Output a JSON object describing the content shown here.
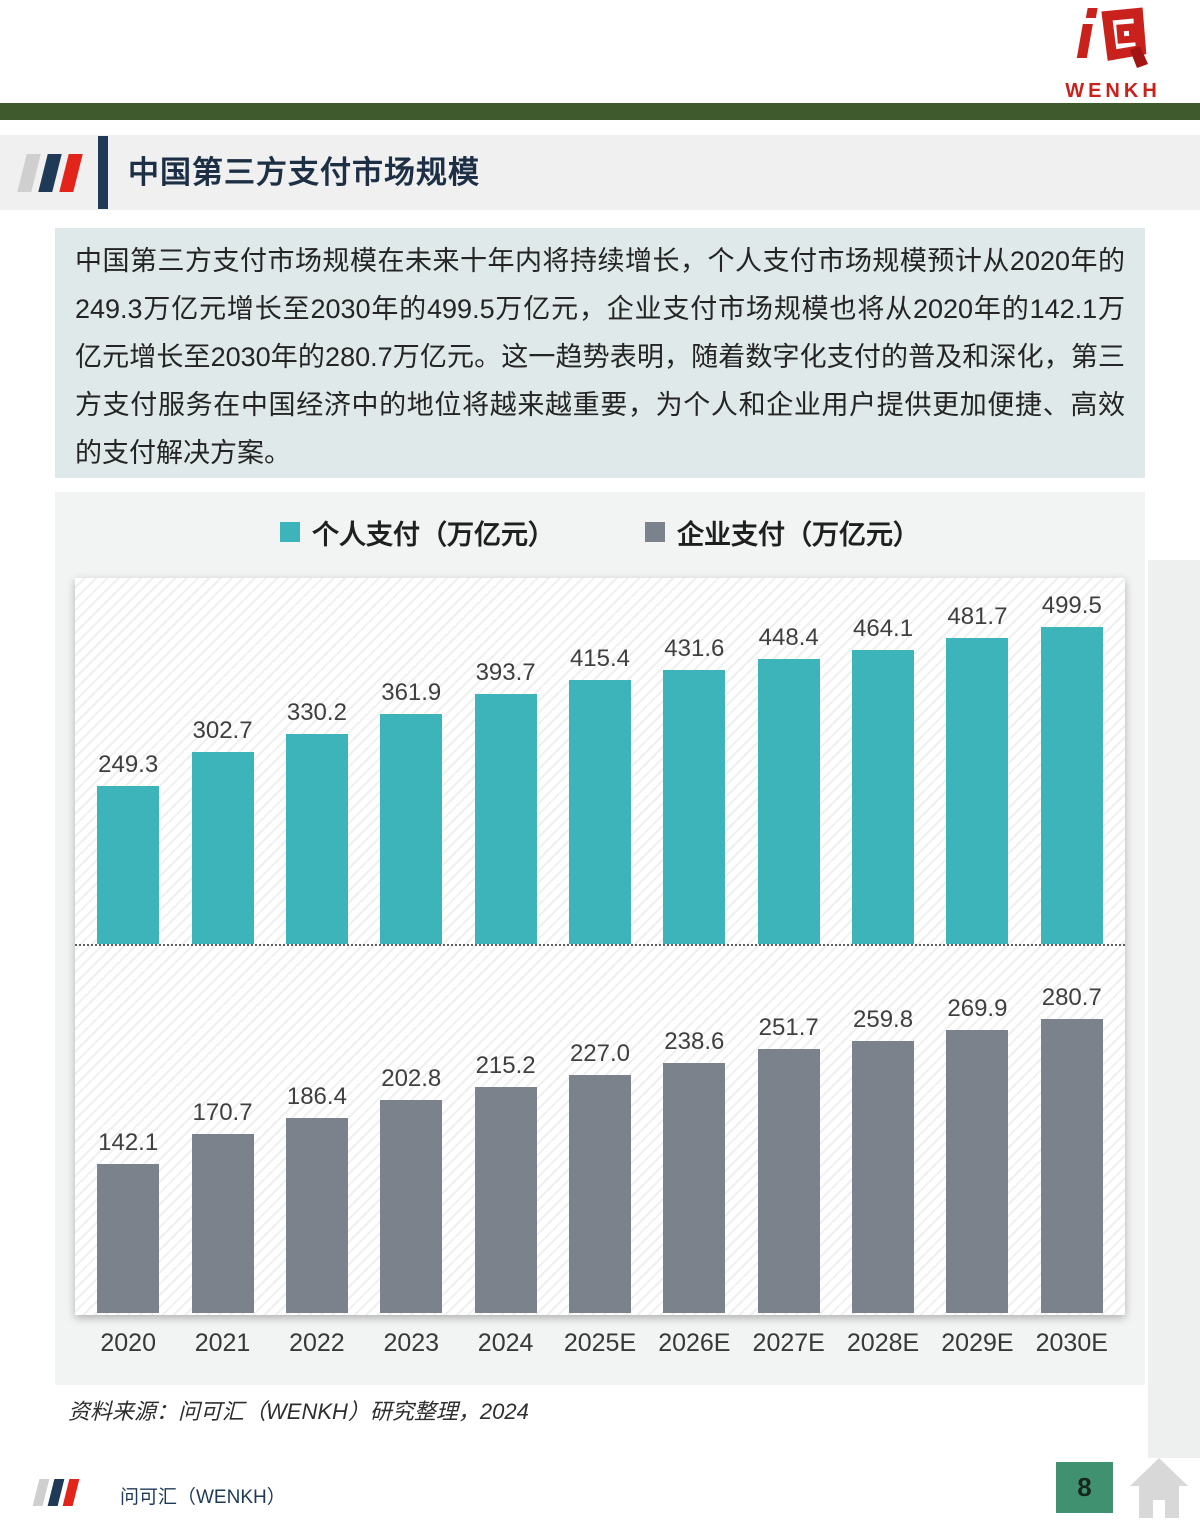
{
  "header": {
    "logo_text": "WENKH"
  },
  "title": {
    "text": "中国第三方支付市场规模"
  },
  "intro": {
    "text": "中国第三方支付市场规模在未来十年内将持续增长，个人支付市场规模预计从2020年的249.3万亿元增长至2030年的499.5万亿元，企业支付市场规模也将从2020年的142.1万亿元增长至2030年的280.7万亿元。这一趋势表明，随着数字化支付的普及和深化，第三方支付服务在中国经济中的地位将越来越重要，为个人和企业用户提供更加便捷、高效的支付解决方案。"
  },
  "chart_data": {
    "type": "bar",
    "title": "",
    "categories": [
      "2020",
      "2021",
      "2022",
      "2023",
      "2024",
      "2025E",
      "2026E",
      "2027E",
      "2028E",
      "2029E",
      "2030E"
    ],
    "series": [
      {
        "name": "个人支付（万亿元）",
        "color": "#3db4ba",
        "ylim": [
          0,
          580
        ],
        "values": [
          249.3,
          302.7,
          330.2,
          361.9,
          393.7,
          415.4,
          431.6,
          448.4,
          464.1,
          481.7,
          499.5
        ]
      },
      {
        "name": "企业支付（万亿元）",
        "color": "#7b828b",
        "ylim": [
          0,
          350
        ],
        "values": [
          142.1,
          170.7,
          186.4,
          202.8,
          215.2,
          227.0,
          238.6,
          251.7,
          259.8,
          269.9,
          280.7
        ]
      }
    ],
    "legend_position": "top",
    "grid": false,
    "value_labels": true,
    "label_format": "one_decimal"
  },
  "source": {
    "text": "资料来源：问可汇（WENKH）研究整理，2024"
  },
  "footer": {
    "brand": "问可汇（WENKH）",
    "page_number": "8"
  },
  "colors": {
    "accent_green_rule": "#3f5b2d",
    "brand_navy": "#1e3a56",
    "brand_red": "#e3241b",
    "logo_red": "#c9211c",
    "intro_bg": "#dfe9e9",
    "panel_bg": "#f2f3f3",
    "page_box_green": "#3f9170"
  }
}
